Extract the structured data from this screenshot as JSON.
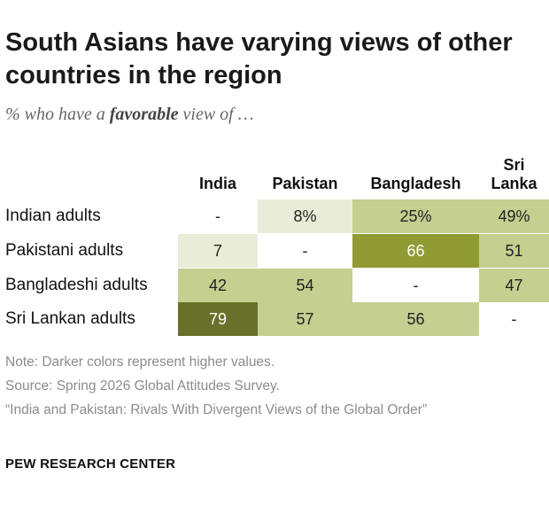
{
  "title": "South Asians have varying views of other countries in the region",
  "subtitle": {
    "before": "% who have a ",
    "emphasis": "favorable",
    "after": " view of …"
  },
  "chart_data": {
    "type": "heatmap",
    "columns": [
      "India",
      "Pakistan",
      "Bangladesh",
      "Sri Lanka"
    ],
    "rows": [
      {
        "label": "Indian adults",
        "values": [
          null,
          8,
          25,
          49
        ],
        "display": [
          "-",
          "8%",
          "25%",
          "49%"
        ]
      },
      {
        "label": "Pakistani adults",
        "values": [
          7,
          null,
          66,
          51
        ],
        "display": [
          "7",
          "-",
          "66",
          "51"
        ]
      },
      {
        "label": "Bangladeshi adults",
        "values": [
          42,
          54,
          null,
          47
        ],
        "display": [
          "42",
          "54",
          "-",
          "47"
        ]
      },
      {
        "label": "Sri Lankan adults",
        "values": [
          79,
          57,
          56,
          null
        ],
        "display": [
          "79",
          "57",
          "56",
          "-"
        ]
      }
    ],
    "color_bins": [
      {
        "min": 0,
        "max": 19,
        "color": "#e9edd7",
        "text": "#222222"
      },
      {
        "min": 20,
        "max": 59,
        "color": "#c4cf90",
        "text": "#222222"
      },
      {
        "min": 60,
        "max": 74,
        "color": "#8f9c34",
        "text": "#ffffff"
      },
      {
        "min": 75,
        "max": 100,
        "color": "#67712a",
        "text": "#ffffff"
      }
    ]
  },
  "notes": [
    "Note: Darker colors represent higher values.",
    "Source: Spring 2026 Global Attitudes Survey.",
    "“India and Pakistan: Rivals With Divergent Views of the Global Order”"
  ],
  "brand": "PEW RESEARCH CENTER"
}
